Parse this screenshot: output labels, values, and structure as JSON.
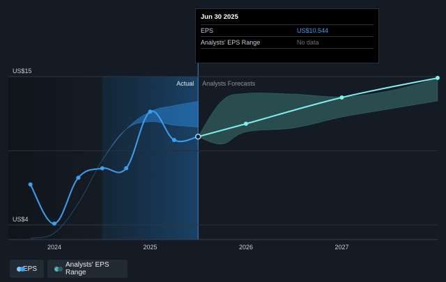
{
  "chart_data": {
    "type": "line",
    "y_tick_labels": [
      "US$15",
      "US$4"
    ],
    "ylim": [
      4,
      15
    ],
    "x_tick_labels": [
      "2024",
      "2025",
      "2026",
      "2027"
    ],
    "x_ticks": [
      2024,
      2025,
      2026,
      2027
    ],
    "xlim": [
      2023.52,
      2028.0
    ],
    "section_labels": {
      "actual": "Actual",
      "forecast": "Analysts Forecasts"
    },
    "divider_x": 2025.5,
    "highlight_start_x": 2024.5,
    "series": [
      {
        "name": "EPS",
        "color": "#3aa0f0",
        "points": [
          {
            "x": 2023.75,
            "y": 7.0
          },
          {
            "x": 2024.0,
            "y": 4.1
          },
          {
            "x": 2024.25,
            "y": 7.5
          },
          {
            "x": 2024.5,
            "y": 8.2
          },
          {
            "x": 2024.75,
            "y": 8.2
          },
          {
            "x": 2025.0,
            "y": 12.4
          },
          {
            "x": 2025.25,
            "y": 10.3
          },
          {
            "x": 2025.5,
            "y": 10.544
          }
        ]
      },
      {
        "name": "EPS forecast",
        "color": "#7ef0ee",
        "points": [
          {
            "x": 2025.5,
            "y": 10.544
          },
          {
            "x": 2026.0,
            "y": 11.5
          },
          {
            "x": 2027.0,
            "y": 13.45
          },
          {
            "x": 2028.0,
            "y": 14.9
          }
        ]
      }
    ],
    "analyst_range_past": {
      "x": [
        2023.75,
        2024.0,
        2024.25,
        2024.5,
        2024.75,
        2025.0,
        2025.25,
        2025.5
      ],
      "upper": [
        3.0,
        3.4,
        5.6,
        8.8,
        11.1,
        12.4,
        12.85,
        13.15
      ],
      "lower": [
        3.0,
        3.4,
        5.6,
        8.8,
        11.1,
        11.65,
        11.4,
        11.25
      ]
    },
    "analyst_range_forecast": {
      "x": [
        2025.5,
        2025.75,
        2026.0,
        2026.5,
        2027.0,
        2027.5,
        2028.0
      ],
      "upper": [
        10.544,
        13.2,
        13.75,
        13.7,
        13.5,
        13.95,
        14.85
      ],
      "lower": [
        10.544,
        10.0,
        10.9,
        11.2,
        12.0,
        12.6,
        13.2
      ]
    },
    "grid": true,
    "legend_position": "bottom-left"
  },
  "tooltip": {
    "date": "Jun 30 2025",
    "rows": [
      {
        "label": "EPS",
        "value": "US$10.544"
      },
      {
        "label": "Analysts' EPS Range",
        "value": "No data"
      }
    ]
  },
  "legend": {
    "items": [
      {
        "label": "EPS",
        "color_a": "#7ec8ff",
        "color_b": "#3aa0f0"
      },
      {
        "label": "Analysts' EPS Range",
        "color_a": "#4fb7b0",
        "color_b": "#2c5f6a"
      }
    ]
  }
}
